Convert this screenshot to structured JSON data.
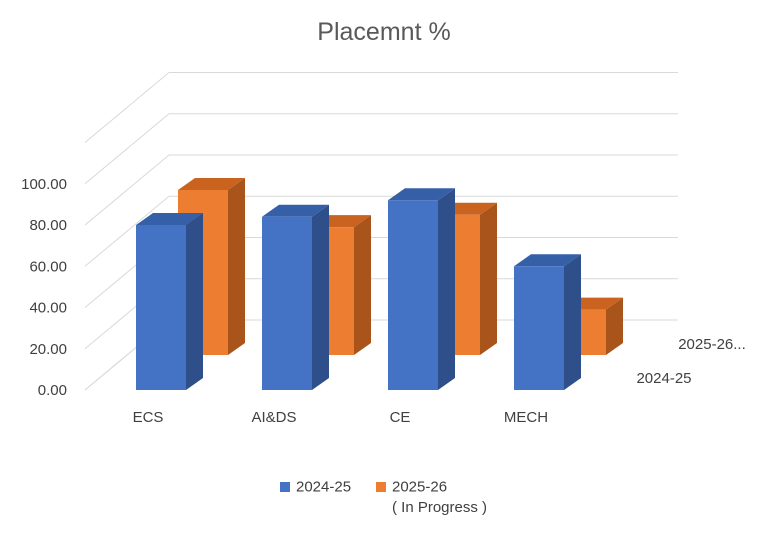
{
  "chart_data": {
    "type": "bar",
    "subtype": "3d-clustered-column",
    "title": "Placemnt %",
    "categories": [
      "ECS",
      "AI&DS",
      "CE",
      "MECH"
    ],
    "series": [
      {
        "name": "2024-25",
        "axis_label": "2024-25",
        "color": "#4472C4",
        "side_color": "#2F4F8A",
        "top_color": "#3560A8",
        "values": [
          80,
          84,
          92,
          60
        ]
      },
      {
        "name": "2025-26",
        "name_line2": "( In Progress )",
        "axis_label": "2025-26...",
        "color": "#ED7D31",
        "side_color": "#A9541A",
        "top_color": "#C9631F",
        "values": [
          80,
          62,
          68,
          22
        ]
      }
    ],
    "y_ticks": [
      "0.00",
      "20.00",
      "40.00",
      "60.00",
      "80.00",
      "100.00"
    ],
    "ylim": [
      0,
      120
    ],
    "grid": true,
    "legend_position": "bottom"
  }
}
